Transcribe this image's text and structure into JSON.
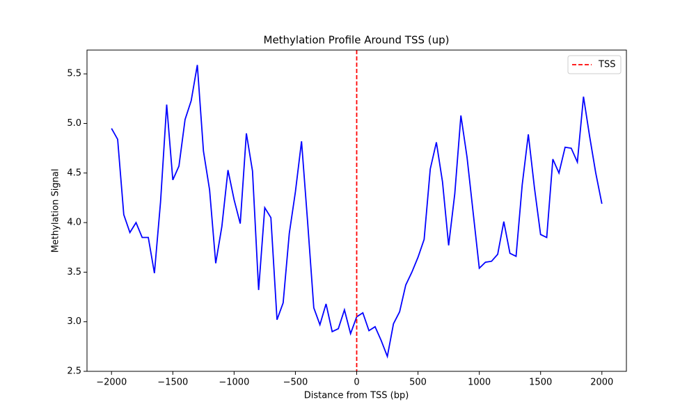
{
  "chart_data": {
    "type": "line",
    "title": "Methylation Profile Around TSS (up)",
    "xlabel": "Distance from TSS (bp)",
    "ylabel": "Methylation Signal",
    "x": [
      -2000,
      -1950,
      -1900,
      -1850,
      -1800,
      -1750,
      -1700,
      -1650,
      -1600,
      -1550,
      -1500,
      -1450,
      -1400,
      -1350,
      -1300,
      -1250,
      -1200,
      -1150,
      -1100,
      -1050,
      -1000,
      -950,
      -900,
      -850,
      -800,
      -750,
      -700,
      -650,
      -600,
      -550,
      -500,
      -450,
      -400,
      -350,
      -300,
      -250,
      -200,
      -150,
      -100,
      -50,
      0,
      50,
      100,
      150,
      200,
      250,
      300,
      350,
      400,
      450,
      500,
      550,
      600,
      650,
      700,
      750,
      800,
      850,
      900,
      950,
      1000,
      1050,
      1100,
      1150,
      1200,
      1250,
      1300,
      1350,
      1400,
      1450,
      1500,
      1550,
      1600,
      1650,
      1700,
      1750,
      1800,
      1850,
      1900,
      1950,
      2000
    ],
    "series": [
      {
        "color": "#0000ff",
        "values": [
          4.95,
          4.84,
          4.08,
          3.9,
          4.0,
          3.85,
          3.85,
          3.49,
          4.21,
          5.19,
          4.43,
          4.57,
          5.04,
          5.23,
          5.59,
          4.72,
          4.33,
          3.59,
          3.96,
          4.53,
          4.23,
          3.99,
          4.9,
          4.52,
          3.32,
          4.15,
          4.05,
          3.02,
          3.19,
          3.89,
          4.31,
          4.82,
          4.0,
          3.14,
          2.97,
          3.18,
          2.9,
          2.93,
          3.12,
          2.88,
          3.05,
          3.09,
          2.91,
          2.95,
          2.81,
          2.65,
          2.98,
          3.1,
          3.37,
          3.5,
          3.65,
          3.83,
          4.54,
          4.81,
          4.41,
          3.77,
          4.29,
          5.08,
          4.66,
          4.1,
          3.54,
          3.6,
          3.61,
          3.68,
          4.01,
          3.69,
          3.66,
          4.38,
          4.89,
          4.35,
          3.88,
          3.85,
          4.64,
          4.5,
          4.76,
          4.75,
          4.61,
          5.27,
          4.87,
          4.5,
          4.19
        ]
      }
    ],
    "vline": {
      "x": 0,
      "label": "TSS",
      "color": "#ff0000"
    },
    "xlim": [
      -2200,
      2200
    ],
    "ylim": [
      2.5,
      5.74
    ],
    "xticks": [
      {
        "value": -2000,
        "label": "−2000"
      },
      {
        "value": -1500,
        "label": "−1500"
      },
      {
        "value": -1000,
        "label": "−1000"
      },
      {
        "value": -500,
        "label": "−500"
      },
      0,
      500,
      1000,
      1500,
      2000
    ],
    "yticks": [
      2.5,
      {
        "value": 3,
        "label": "3.0"
      },
      3.5,
      {
        "value": 4,
        "label": "4.0"
      },
      4.5,
      {
        "value": 5,
        "label": "5.0"
      },
      5.5
    ],
    "legend": "upper right"
  }
}
